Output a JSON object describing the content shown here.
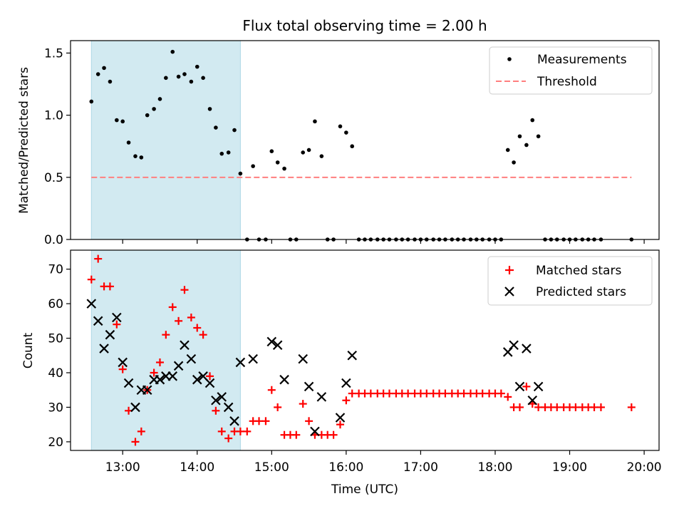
{
  "figure": {
    "title": "Flux total observing time = 2.00 h",
    "xlabel": "Time (UTC)"
  },
  "colors": {
    "shade": "#add8e6",
    "measurement": "#000000",
    "threshold": "#ff7f7f",
    "matched": "#ff0000",
    "predicted": "#000000"
  },
  "chart_data": [
    {
      "type": "scatter",
      "panel": "top",
      "ylabel": "Matched/Predicted stars",
      "xlim_hours": [
        12.3,
        20.2
      ],
      "ylim": [
        0,
        1.6
      ],
      "yticks": [
        {
          "value": 0.0,
          "label": "0.0"
        },
        {
          "value": 0.5,
          "label": "0.5"
        },
        {
          "value": 1.0,
          "label": "1.0"
        },
        {
          "value": 1.5,
          "label": "1.5"
        }
      ],
      "shaded_span_hours": [
        12.58,
        14.58
      ],
      "threshold": {
        "name": "Threshold",
        "y": 0.5,
        "x_hours": [
          12.58,
          19.83
        ],
        "style": "dashed"
      },
      "legend": {
        "position": "upper right",
        "entries": [
          "Measurements",
          "Threshold"
        ]
      },
      "series": [
        {
          "name": "Measurements",
          "marker": "dot",
          "points": [
            [
              12.58,
              1.11
            ],
            [
              12.67,
              1.33
            ],
            [
              12.75,
              1.38
            ],
            [
              12.83,
              1.27
            ],
            [
              12.92,
              0.96
            ],
            [
              13.0,
              0.95
            ],
            [
              13.08,
              0.78
            ],
            [
              13.17,
              0.67
            ],
            [
              13.25,
              0.66
            ],
            [
              13.33,
              1.0
            ],
            [
              13.42,
              1.05
            ],
            [
              13.5,
              1.13
            ],
            [
              13.58,
              1.3
            ],
            [
              13.67,
              1.51
            ],
            [
              13.75,
              1.31
            ],
            [
              13.83,
              1.33
            ],
            [
              13.92,
              1.27
            ],
            [
              14.0,
              1.39
            ],
            [
              14.08,
              1.3
            ],
            [
              14.17,
              1.05
            ],
            [
              14.25,
              0.9
            ],
            [
              14.33,
              0.69
            ],
            [
              14.42,
              0.7
            ],
            [
              14.5,
              0.88
            ],
            [
              14.58,
              0.53
            ],
            [
              14.67,
              0.0
            ],
            [
              14.75,
              0.59
            ],
            [
              14.83,
              0.0
            ],
            [
              14.92,
              0.0
            ],
            [
              15.0,
              0.71
            ],
            [
              15.08,
              0.62
            ],
            [
              15.17,
              0.57
            ],
            [
              15.25,
              0.0
            ],
            [
              15.33,
              0.0
            ],
            [
              15.42,
              0.7
            ],
            [
              15.5,
              0.72
            ],
            [
              15.58,
              0.95
            ],
            [
              15.67,
              0.67
            ],
            [
              15.75,
              0.0
            ],
            [
              15.83,
              0.0
            ],
            [
              15.92,
              0.91
            ],
            [
              16.0,
              0.86
            ],
            [
              16.08,
              0.75
            ],
            [
              16.17,
              0.0
            ],
            [
              16.25,
              0.0
            ],
            [
              16.33,
              0.0
            ],
            [
              16.42,
              0.0
            ],
            [
              16.5,
              0.0
            ],
            [
              16.58,
              0.0
            ],
            [
              16.67,
              0.0
            ],
            [
              16.75,
              0.0
            ],
            [
              16.83,
              0.0
            ],
            [
              16.92,
              0.0
            ],
            [
              17.0,
              0.0
            ],
            [
              17.08,
              0.0
            ],
            [
              17.17,
              0.0
            ],
            [
              17.25,
              0.0
            ],
            [
              17.33,
              0.0
            ],
            [
              17.42,
              0.0
            ],
            [
              17.5,
              0.0
            ],
            [
              17.58,
              0.0
            ],
            [
              17.67,
              0.0
            ],
            [
              17.75,
              0.0
            ],
            [
              17.83,
              0.0
            ],
            [
              17.92,
              0.0
            ],
            [
              18.0,
              0.0
            ],
            [
              18.08,
              0.0
            ],
            [
              18.17,
              0.72
            ],
            [
              18.25,
              0.62
            ],
            [
              18.33,
              0.83
            ],
            [
              18.42,
              0.76
            ],
            [
              18.5,
              0.96
            ],
            [
              18.58,
              0.83
            ],
            [
              18.67,
              0.0
            ],
            [
              18.75,
              0.0
            ],
            [
              18.83,
              0.0
            ],
            [
              18.92,
              0.0
            ],
            [
              19.0,
              0.0
            ],
            [
              19.08,
              0.0
            ],
            [
              19.17,
              0.0
            ],
            [
              19.25,
              0.0
            ],
            [
              19.33,
              0.0
            ],
            [
              19.42,
              0.0
            ],
            [
              19.83,
              0.0
            ]
          ]
        }
      ]
    },
    {
      "type": "scatter",
      "panel": "bottom",
      "ylabel": "Count",
      "xlim_hours": [
        12.3,
        20.2
      ],
      "ylim": [
        17.5,
        75.5
      ],
      "yticks": [
        {
          "value": 20,
          "label": "20"
        },
        {
          "value": 30,
          "label": "30"
        },
        {
          "value": 40,
          "label": "40"
        },
        {
          "value": 50,
          "label": "50"
        },
        {
          "value": 60,
          "label": "60"
        },
        {
          "value": 70,
          "label": "70"
        }
      ],
      "xticks": [
        {
          "value": 13,
          "label": "13:00"
        },
        {
          "value": 14,
          "label": "14:00"
        },
        {
          "value": 15,
          "label": "15:00"
        },
        {
          "value": 16,
          "label": "16:00"
        },
        {
          "value": 17,
          "label": "17:00"
        },
        {
          "value": 18,
          "label": "18:00"
        },
        {
          "value": 19,
          "label": "19:00"
        },
        {
          "value": 20,
          "label": "20:00"
        }
      ],
      "shaded_span_hours": [
        12.58,
        14.58
      ],
      "legend": {
        "position": "upper right",
        "entries": [
          "Matched stars",
          "Predicted stars"
        ]
      },
      "series": [
        {
          "name": "Matched stars",
          "marker": "plus",
          "points": [
            [
              12.58,
              67
            ],
            [
              12.67,
              73
            ],
            [
              12.75,
              65
            ],
            [
              12.83,
              65
            ],
            [
              12.92,
              54
            ],
            [
              13.0,
              41
            ],
            [
              13.08,
              29
            ],
            [
              13.17,
              20
            ],
            [
              13.25,
              23
            ],
            [
              13.33,
              35
            ],
            [
              13.42,
              40
            ],
            [
              13.5,
              43
            ],
            [
              13.58,
              51
            ],
            [
              13.67,
              59
            ],
            [
              13.75,
              55
            ],
            [
              13.83,
              64
            ],
            [
              13.92,
              56
            ],
            [
              14.0,
              53
            ],
            [
              14.08,
              51
            ],
            [
              14.17,
              39
            ],
            [
              14.25,
              29
            ],
            [
              14.33,
              23
            ],
            [
              14.42,
              21
            ],
            [
              14.5,
              23
            ],
            [
              14.58,
              23
            ],
            [
              14.67,
              23
            ],
            [
              14.75,
              26
            ],
            [
              14.83,
              26
            ],
            [
              14.92,
              26
            ],
            [
              15.0,
              35
            ],
            [
              15.08,
              30
            ],
            [
              15.17,
              22
            ],
            [
              15.25,
              22
            ],
            [
              15.33,
              22
            ],
            [
              15.42,
              31
            ],
            [
              15.5,
              26
            ],
            [
              15.58,
              22
            ],
            [
              15.67,
              22
            ],
            [
              15.75,
              22
            ],
            [
              15.83,
              22
            ],
            [
              15.92,
              25
            ],
            [
              16.0,
              32
            ],
            [
              16.08,
              34
            ],
            [
              16.17,
              34
            ],
            [
              16.25,
              34
            ],
            [
              16.33,
              34
            ],
            [
              16.42,
              34
            ],
            [
              16.5,
              34
            ],
            [
              16.58,
              34
            ],
            [
              16.67,
              34
            ],
            [
              16.75,
              34
            ],
            [
              16.83,
              34
            ],
            [
              16.92,
              34
            ],
            [
              17.0,
              34
            ],
            [
              17.08,
              34
            ],
            [
              17.17,
              34
            ],
            [
              17.25,
              34
            ],
            [
              17.33,
              34
            ],
            [
              17.42,
              34
            ],
            [
              17.5,
              34
            ],
            [
              17.58,
              34
            ],
            [
              17.67,
              34
            ],
            [
              17.75,
              34
            ],
            [
              17.83,
              34
            ],
            [
              17.92,
              34
            ],
            [
              18.0,
              34
            ],
            [
              18.08,
              34
            ],
            [
              18.17,
              33
            ],
            [
              18.25,
              30
            ],
            [
              18.33,
              30
            ],
            [
              18.42,
              36
            ],
            [
              18.5,
              31
            ],
            [
              18.58,
              30
            ],
            [
              18.67,
              30
            ],
            [
              18.75,
              30
            ],
            [
              18.83,
              30
            ],
            [
              18.92,
              30
            ],
            [
              19.0,
              30
            ],
            [
              19.08,
              30
            ],
            [
              19.17,
              30
            ],
            [
              19.25,
              30
            ],
            [
              19.33,
              30
            ],
            [
              19.42,
              30
            ],
            [
              19.83,
              30
            ]
          ]
        },
        {
          "name": "Predicted stars",
          "marker": "x",
          "points": [
            [
              12.58,
              60
            ],
            [
              12.67,
              55
            ],
            [
              12.75,
              47
            ],
            [
              12.83,
              51
            ],
            [
              12.92,
              56
            ],
            [
              13.0,
              43
            ],
            [
              13.08,
              37
            ],
            [
              13.17,
              30
            ],
            [
              13.25,
              35
            ],
            [
              13.33,
              35
            ],
            [
              13.42,
              38
            ],
            [
              13.5,
              38
            ],
            [
              13.58,
              39
            ],
            [
              13.67,
              39
            ],
            [
              13.75,
              42
            ],
            [
              13.83,
              48
            ],
            [
              13.92,
              44
            ],
            [
              14.0,
              38
            ],
            [
              14.08,
              39
            ],
            [
              14.17,
              37
            ],
            [
              14.25,
              32
            ],
            [
              14.33,
              33
            ],
            [
              14.42,
              30
            ],
            [
              14.5,
              26
            ],
            [
              14.58,
              43
            ],
            [
              14.75,
              44
            ],
            [
              15.0,
              49
            ],
            [
              15.08,
              48
            ],
            [
              15.17,
              38
            ],
            [
              15.42,
              44
            ],
            [
              15.5,
              36
            ],
            [
              15.58,
              23
            ],
            [
              15.67,
              33
            ],
            [
              15.92,
              27
            ],
            [
              16.0,
              37
            ],
            [
              16.08,
              45
            ],
            [
              18.17,
              46
            ],
            [
              18.25,
              48
            ],
            [
              18.33,
              36
            ],
            [
              18.42,
              47
            ],
            [
              18.5,
              32
            ],
            [
              18.58,
              36
            ]
          ]
        }
      ]
    }
  ]
}
